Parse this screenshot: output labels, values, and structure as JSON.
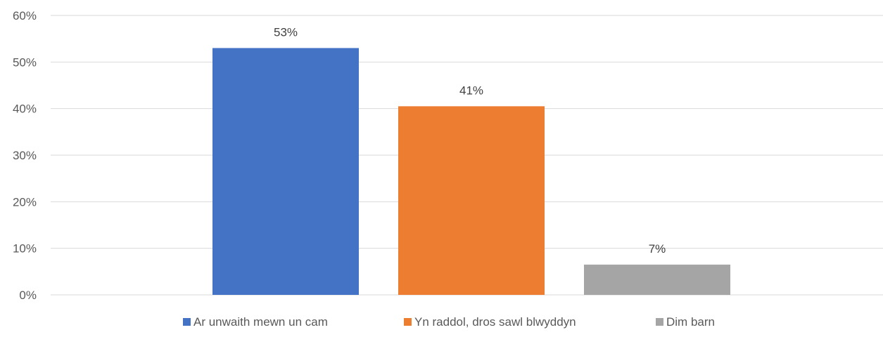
{
  "chart_data": {
    "type": "bar",
    "categories": [
      "Ar unwaith mewn un cam",
      "Yn raddol, dros sawl blwyddyn",
      "Dim barn"
    ],
    "series": [
      {
        "name": "Ar unwaith mewn un cam",
        "value": 53,
        "label": "53%",
        "color": "#4472C4"
      },
      {
        "name": "Yn raddol, dros sawl blwyddyn",
        "value": 40.5,
        "label": "41%",
        "color": "#ED7D31"
      },
      {
        "name": "Dim barn",
        "value": 6.5,
        "label": "7%",
        "color": "#A5A5A5"
      }
    ],
    "y_ticks": [
      {
        "value": 0,
        "label": "0%"
      },
      {
        "value": 10,
        "label": "10%"
      },
      {
        "value": 20,
        "label": "20%"
      },
      {
        "value": 30,
        "label": "30%"
      },
      {
        "value": 40,
        "label": "40%"
      },
      {
        "value": 50,
        "label": "50%"
      },
      {
        "value": 60,
        "label": "60%"
      }
    ],
    "ylim": [
      0,
      60
    ],
    "grid": true,
    "legend_position": "bottom",
    "gridline_color": "#D9D9D9"
  }
}
